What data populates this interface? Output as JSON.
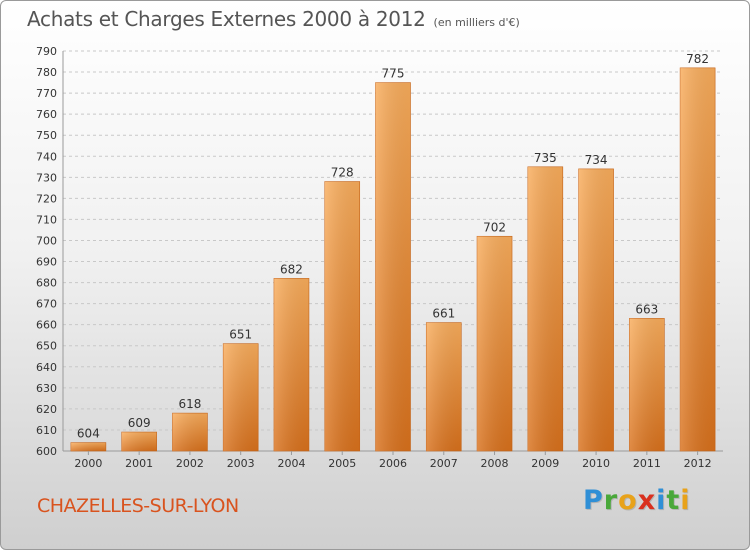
{
  "title": "Achats et Charges Externes 2000 à 2012",
  "unit": "(en milliers d'€)",
  "commune": "CHAZELLES-SUR-LYON",
  "logo": {
    "letters": [
      {
        "char": "P",
        "color": "#2f8fd6"
      },
      {
        "char": "r",
        "color": "#49a83a"
      },
      {
        "char": "o",
        "color": "#e8a21a"
      },
      {
        "char": "x",
        "color": "#d9301e"
      },
      {
        "char": "i",
        "color": "#2f8fd6"
      },
      {
        "char": "t",
        "color": "#49a83a"
      },
      {
        "char": "i",
        "color": "#e8a21a"
      }
    ]
  },
  "colors": {
    "bar_light": "#f9ad5c",
    "bar_dark": "#d9711c",
    "grid": "#c8c8c8",
    "axis_text": "#333333"
  },
  "chart_data": {
    "type": "bar",
    "title": "Achats et Charges Externes 2000 à 2012",
    "categories": [
      "2000",
      "2001",
      "2002",
      "2003",
      "2004",
      "2005",
      "2006",
      "2007",
      "2008",
      "2009",
      "2010",
      "2011",
      "2012"
    ],
    "values": [
      604,
      609,
      618,
      651,
      682,
      728,
      775,
      661,
      702,
      735,
      734,
      663,
      782
    ],
    "ylim": [
      600,
      790
    ],
    "yticks": [
      600,
      610,
      620,
      630,
      640,
      650,
      660,
      670,
      680,
      690,
      700,
      710,
      720,
      730,
      740,
      750,
      760,
      770,
      780,
      790
    ],
    "grid": true,
    "xlabel": "",
    "ylabel": ""
  }
}
